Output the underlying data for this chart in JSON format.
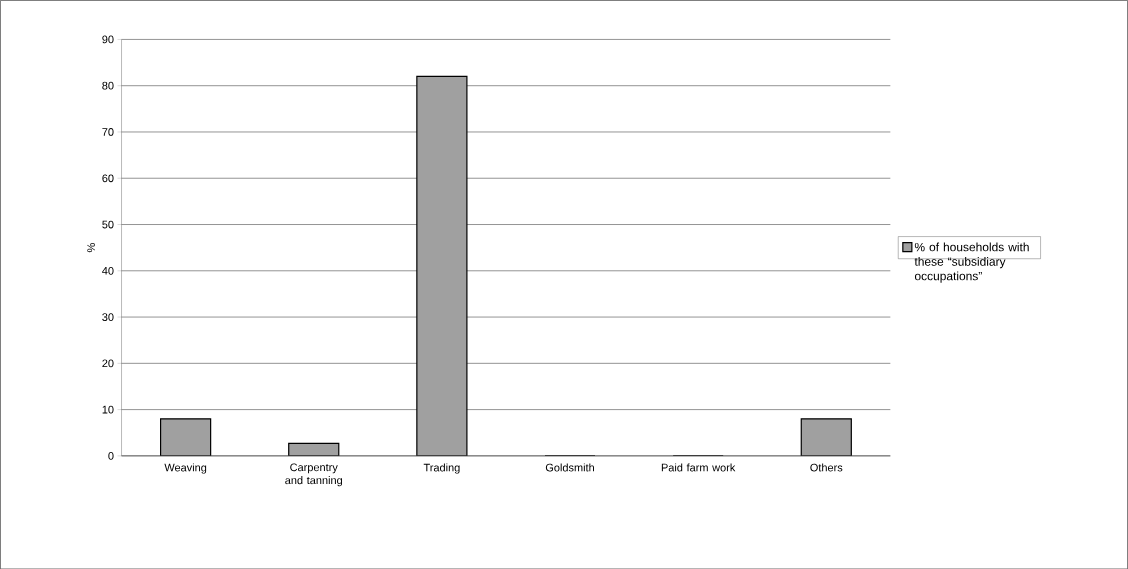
{
  "chart_data": {
    "type": "bar",
    "ylabel": "%",
    "categories": [
      "Weaving",
      "Carpentry and tanning",
      "Trading",
      "Goldsmith",
      "Paid farm work",
      "Others"
    ],
    "series": [
      {
        "name": "% of households with these “subsidiary occupations”",
        "color": "#a0a0a0",
        "values": [
          8,
          2.7,
          82,
          0,
          0,
          8
        ]
      }
    ],
    "ylim": [
      0,
      90
    ],
    "yticks": [
      0,
      10,
      20,
      30,
      40,
      50,
      60,
      70,
      80,
      90
    ],
    "grid": "y",
    "legend": "right"
  }
}
